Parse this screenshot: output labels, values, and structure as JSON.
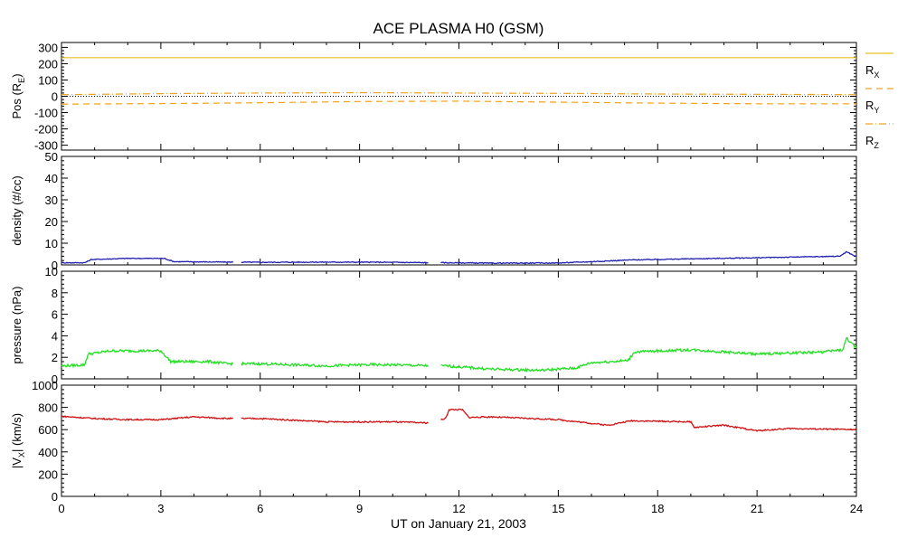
{
  "chart_data": {
    "type": "line",
    "title": "ACE PLASMA H0 (GSM)",
    "xlabel": "UT on January 21, 2003",
    "x_ticks": [
      "0",
      "3",
      "6",
      "9",
      "12",
      "15",
      "18",
      "21",
      "24"
    ],
    "xlim": [
      0,
      24
    ],
    "panels": [
      {
        "id": "pos",
        "ylabel_main": "Pos (R",
        "ylabel_sub": "E",
        "ylabel_close": ")",
        "ylim": [
          -330,
          330
        ],
        "y_ticks": [
          300,
          200,
          100,
          0,
          -100,
          -200,
          -300
        ],
        "y_tick_labels": [
          "300",
          "200",
          "100",
          "0",
          "-100",
          "-200",
          "-300"
        ],
        "zero_line": true,
        "series": [
          {
            "name": "R",
            "sub": "X",
            "color": "#e8c020",
            "style": "solid",
            "x": [
              0,
              6,
              12,
              18,
              24
            ],
            "values": [
              237,
              237,
              237,
              237,
              237
            ]
          },
          {
            "name": "R",
            "sub": "Y",
            "color": "#f0a020",
            "style": "dashed",
            "x": [
              0,
              3,
              6,
              9,
              12,
              15,
              18,
              21,
              24
            ],
            "values": [
              -48,
              -45,
              -40,
              -32,
              -30,
              -36,
              -42,
              -46,
              -46
            ]
          },
          {
            "name": "R",
            "sub": "Z",
            "color": "#f0a020",
            "style": "dashdot",
            "x": [
              0,
              3,
              6,
              9,
              12,
              15,
              18,
              21,
              24
            ],
            "values": [
              10,
              16,
              20,
              22,
              20,
              18,
              14,
              12,
              10
            ]
          }
        ]
      },
      {
        "id": "density",
        "ylabel": "density (#/cc)",
        "ylim": [
          0,
          50
        ],
        "y_ticks": [
          0,
          10,
          20,
          30,
          40,
          50
        ],
        "y_tick_labels": [
          "0",
          "10",
          "20",
          "30",
          "40",
          "50"
        ],
        "series": [
          {
            "name": "density",
            "color": "#2020b0",
            "x": [
              0,
              0.7,
              0.9,
              2,
              3.1,
              3.4,
              5,
              6,
              8,
              10,
              11.2,
              11.6,
              13,
              15,
              16,
              17.2,
              19,
              21,
              23.5,
              23.7,
              24
            ],
            "values": [
              1,
              1,
              2.5,
              3,
              3,
              1.5,
              1.3,
              1.2,
              1.3,
              1.2,
              1,
              1,
              0.8,
              0.9,
              1.5,
              2.3,
              2.8,
              3.3,
              4,
              6,
              3.8
            ],
            "gaps": [
              [
                5.2,
                5.4
              ],
              [
                11.1,
                11.45
              ]
            ]
          }
        ]
      },
      {
        "id": "pressure",
        "ylabel": "pressure (nPa)",
        "ylim": [
          0,
          10
        ],
        "y_ticks": [
          0,
          2,
          4,
          6,
          8,
          10
        ],
        "y_tick_labels": [
          "0",
          "2",
          "4",
          "6",
          "8",
          "10"
        ],
        "series": [
          {
            "name": "pressure",
            "color": "#20e020",
            "x": [
              0,
              0.7,
              0.8,
              1.5,
              3,
              3.3,
              4.5,
              5,
              6,
              8,
              9,
              10,
              11.2,
              11.6,
              13,
              14.5,
              15.5,
              16,
              17.1,
              17.3,
              19,
              21,
              23,
              23.6,
              23.7,
              24
            ],
            "values": [
              1.2,
              1.3,
              2.3,
              2.6,
              2.6,
              1.6,
              1.6,
              1.4,
              1.4,
              1.2,
              1.3,
              1.3,
              1.2,
              1.2,
              0.9,
              0.8,
              1.0,
              1.5,
              1.7,
              2.5,
              2.7,
              2.3,
              2.5,
              2.7,
              3.8,
              2.8
            ],
            "gaps": [
              [
                5.2,
                5.4
              ],
              [
                11.1,
                11.45
              ]
            ]
          }
        ]
      },
      {
        "id": "vx",
        "ylabel_main": "|V",
        "ylabel_sub": "X",
        "ylabel_close": "| (km/s)",
        "ylim": [
          0,
          1000
        ],
        "y_ticks": [
          0,
          200,
          400,
          600,
          800,
          1000
        ],
        "y_tick_labels": [
          "0",
          "200",
          "400",
          "600",
          "800",
          "1000"
        ],
        "series": [
          {
            "name": "|Vx|",
            "color": "#d01010",
            "x": [
              0,
              1,
              2,
              3,
              4,
              5,
              6,
              8,
              10,
              11.1,
              11.6,
              11.7,
              12.1,
              12.3,
              13,
              15,
              16.5,
              17.2,
              19,
              19.1,
              20,
              21,
              22,
              24
            ],
            "values": [
              720,
              700,
              690,
              690,
              715,
              700,
              700,
              670,
              670,
              660,
              700,
              780,
              780,
              710,
              715,
              690,
              640,
              680,
              670,
              620,
              640,
              590,
              610,
              600
            ],
            "gaps": [
              [
                5.2,
                5.4
              ],
              [
                11.1,
                11.45
              ]
            ]
          }
        ]
      }
    ]
  }
}
